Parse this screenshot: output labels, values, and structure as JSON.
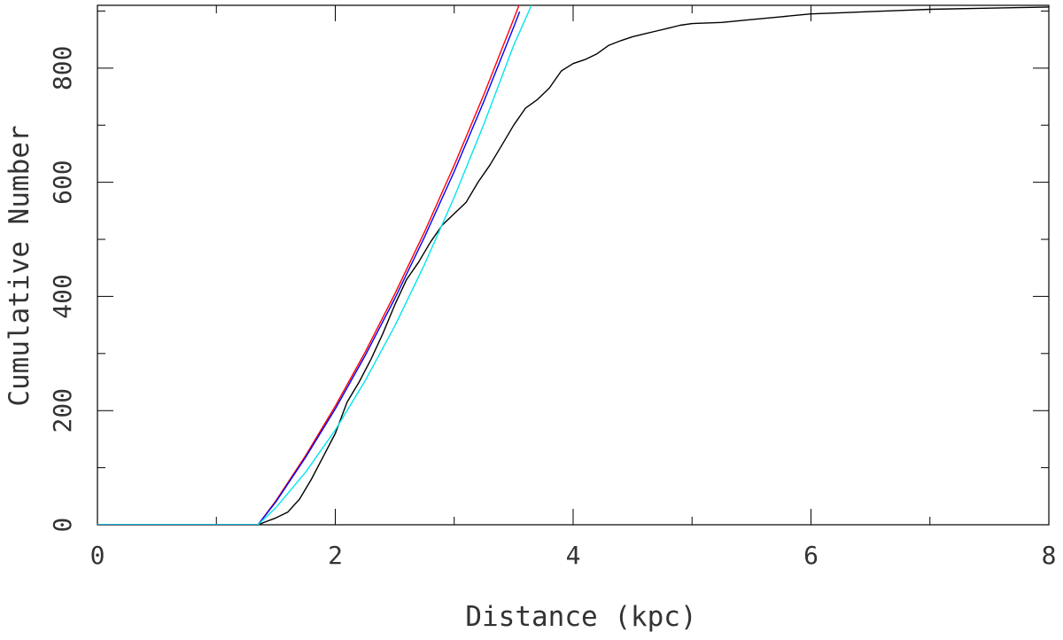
{
  "chart_data": {
    "type": "line",
    "title": "",
    "xlabel": "Distance (kpc)",
    "ylabel": "Cumulative Number",
    "xlim": [
      0,
      8
    ],
    "ylim": [
      0,
      910
    ],
    "x_ticks": [
      0,
      2,
      4,
      6,
      8
    ],
    "y_ticks": [
      0,
      200,
      400,
      600,
      800
    ],
    "grid": false,
    "series": [
      {
        "color": "#000000",
        "x": [
          0,
          1.35,
          1.4,
          1.5,
          1.6,
          1.7,
          1.8,
          1.9,
          2.0,
          2.1,
          2.2,
          2.3,
          2.4,
          2.5,
          2.6,
          2.7,
          2.8,
          2.9,
          3.0,
          3.1,
          3.2,
          3.3,
          3.4,
          3.5,
          3.6,
          3.7,
          3.8,
          3.9,
          4.0,
          4.1,
          4.2,
          4.3,
          4.4,
          4.5,
          4.6,
          4.7,
          4.8,
          4.9,
          5.0,
          5.25,
          5.5,
          5.75,
          6.0,
          6.25,
          6.5,
          6.75,
          7.0,
          7.5,
          8.0
        ],
        "y": [
          0,
          0,
          4,
          12,
          22,
          45,
          80,
          120,
          160,
          215,
          250,
          290,
          335,
          385,
          430,
          460,
          495,
          525,
          545,
          565,
          600,
          630,
          665,
          700,
          730,
          745,
          765,
          795,
          808,
          815,
          825,
          840,
          848,
          855,
          860,
          865,
          870,
          875,
          878,
          880,
          885,
          890,
          895,
          897,
          899,
          901,
          903,
          905,
          907
        ]
      },
      {
        "color": "#ff0000",
        "x": [
          0,
          1.35,
          1.5,
          1.75,
          2.0,
          2.25,
          2.5,
          2.75,
          3.0,
          3.25,
          3.5,
          3.55
        ],
        "y": [
          0,
          0,
          42,
          121,
          208,
          302,
          404,
          513,
          630,
          754,
          886,
          913
        ]
      },
      {
        "color": "#0000ff",
        "x": [
          0,
          1.35,
          1.5,
          1.75,
          2.0,
          2.25,
          2.5,
          2.75,
          3.0,
          3.25,
          3.5,
          3.55
        ],
        "y": [
          0,
          0,
          40,
          118,
          203,
          296,
          396,
          504,
          619,
          742,
          872,
          899
        ]
      },
      {
        "color": "#00e5ee",
        "x": [
          0,
          1.35,
          1.5,
          1.75,
          2.0,
          2.25,
          2.5,
          2.75,
          3.0,
          3.25,
          3.5,
          3.65
        ],
        "y": [
          0,
          0,
          30,
          92,
          166,
          252,
          348,
          456,
          574,
          702,
          840,
          910
        ]
      }
    ]
  }
}
